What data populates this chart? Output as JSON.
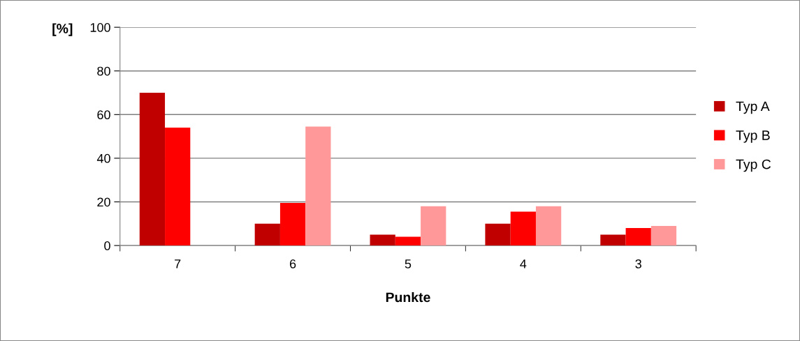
{
  "chart_data": {
    "type": "bar",
    "ylabel": "[%]",
    "xlabel": "Punkte",
    "categories": [
      "7",
      "6",
      "5",
      "4",
      "3"
    ],
    "series": [
      {
        "name": "Typ A",
        "color": "#c00000",
        "values": [
          70,
          10,
          5,
          10,
          5
        ]
      },
      {
        "name": "Typ B",
        "color": "#ff0000",
        "values": [
          54,
          19.5,
          4,
          15.5,
          8
        ]
      },
      {
        "name": "Typ C",
        "color": "#ff9999",
        "values": [
          0,
          54.5,
          18,
          18,
          9
        ]
      }
    ],
    "ylim": [
      0,
      100
    ],
    "yticks": [
      0,
      20,
      40,
      60,
      80,
      100
    ],
    "grid": "y",
    "legend": "right"
  }
}
